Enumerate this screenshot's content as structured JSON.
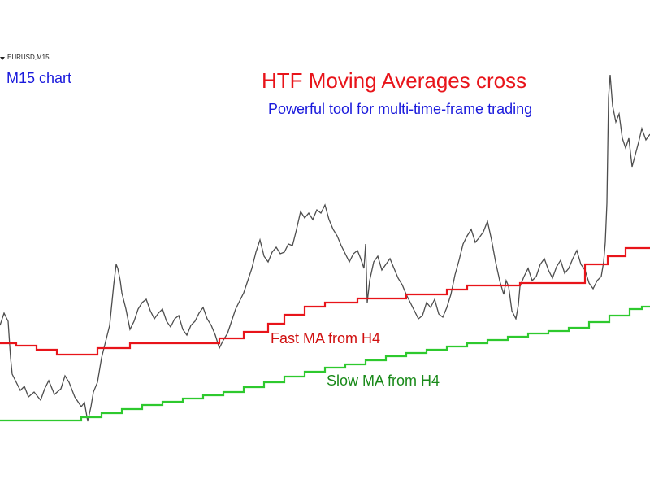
{
  "header": {
    "symbol": "EURUSD,M15",
    "timeframe_note": "M15 chart"
  },
  "title": "HTF Moving Averages cross",
  "subtitle": "Powerful tool for multi-time-frame trading",
  "annotations": {
    "fast": "Fast MA from H4",
    "slow": "Slow MA from H4"
  }
}
